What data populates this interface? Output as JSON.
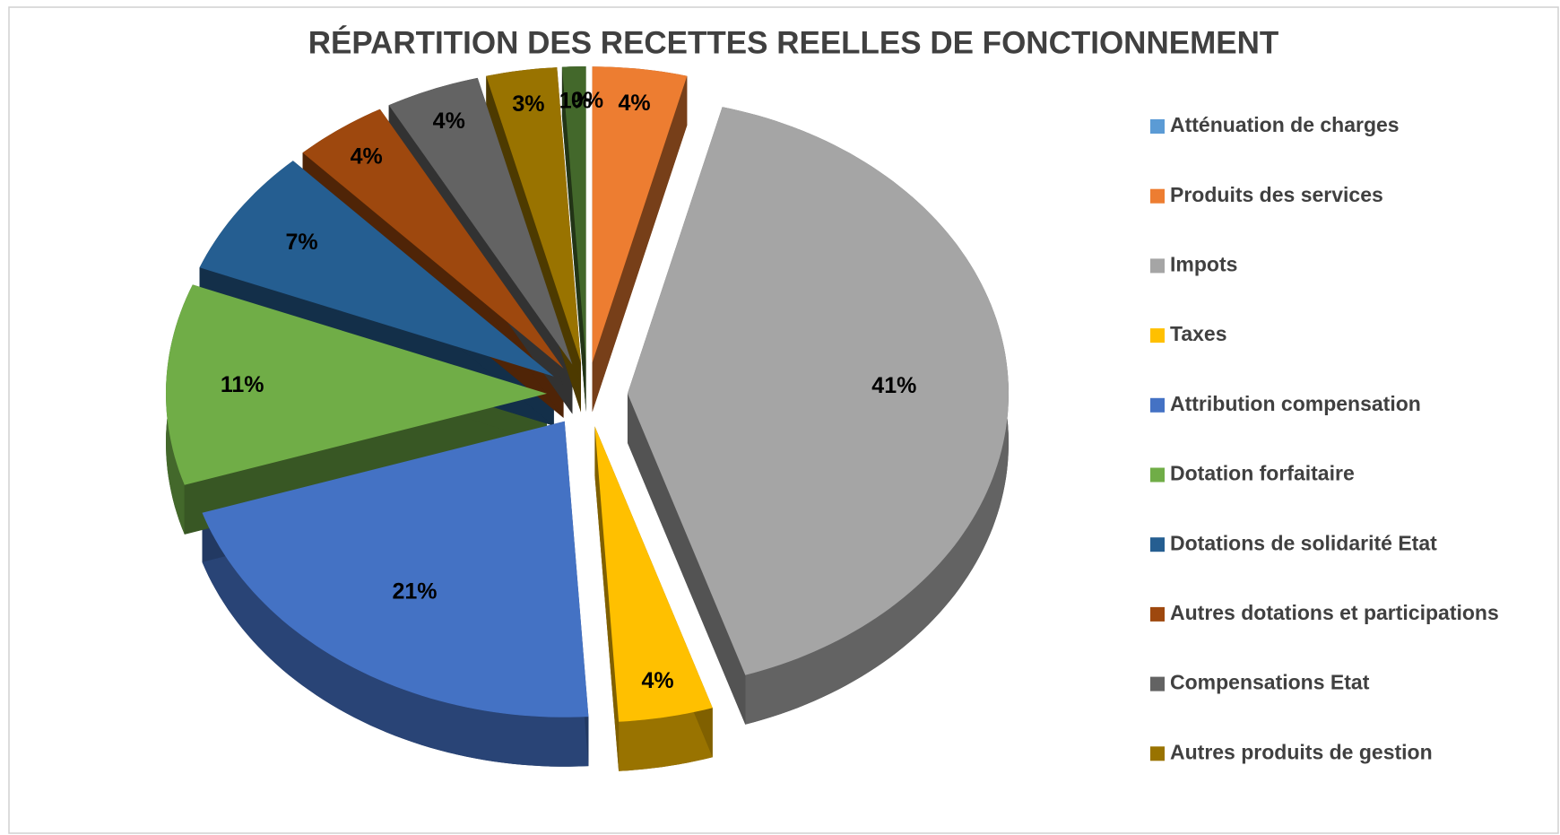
{
  "chart_data": {
    "type": "pie",
    "title": "RÉPARTITION DES RECETTES REELLES DE FONCTIONNEMENT",
    "categories": [
      "Atténuation de charges",
      "Produits des services",
      "Impots",
      "Taxes",
      "Attribution compensation",
      "Dotation forfaitaire",
      "Dotations de solidarité Etat",
      "Autres dotations et participations",
      "Compensations Etat",
      "Autres produits de gestion",
      null
    ],
    "values": [
      0,
      4,
      41,
      4,
      21,
      11,
      7,
      4,
      4,
      3,
      1
    ],
    "value_labels": [
      "0%",
      "4%",
      "41%",
      "4%",
      "21%",
      "11%",
      "7%",
      "4%",
      "4%",
      "3%",
      "1%"
    ],
    "colors": [
      "#5b9bd5",
      "#ed7d31",
      "#a5a5a5",
      "#ffc000",
      "#4472c4",
      "#70ad47",
      "#255e91",
      "#9e480e",
      "#636363",
      "#997300",
      "#43682b"
    ],
    "legend": "right"
  }
}
